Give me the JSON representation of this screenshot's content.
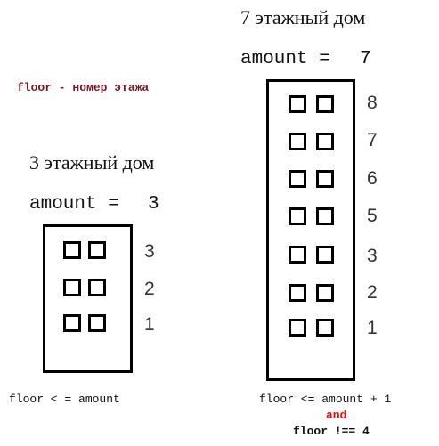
{
  "colors": {
    "floor_note": "#7a1722",
    "and_text": "#e01010"
  },
  "floor_note": "floor - номер этажа",
  "left": {
    "title": "3 этажный дом",
    "amount_label": "amount =",
    "amount_value": "3",
    "floor_numbers": [
      "3",
      "2",
      "1"
    ],
    "condition": "floor < = amount"
  },
  "right": {
    "title": "7 этажный дом",
    "amount_label": "amount =",
    "amount_value": "7",
    "floor_numbers": [
      "8",
      "7",
      "6",
      "5",
      "3",
      "2",
      "1"
    ],
    "condition": "floor <= amount + 1",
    "and_text": "and",
    "extra_condition": "floor !== 4"
  }
}
